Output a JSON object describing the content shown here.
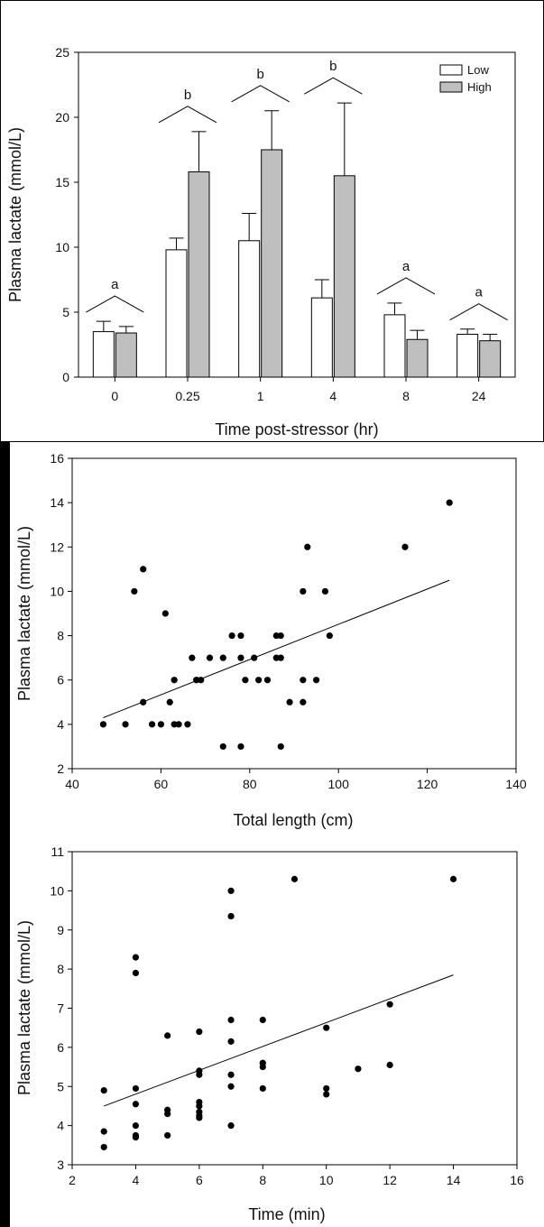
{
  "chart_data": [
    {
      "type": "bar",
      "title": "",
      "xlabel": "Time post-stressor (hr)",
      "ylabel": "Plasma lactate (mmol/L)",
      "ylim": [
        0,
        25
      ],
      "yticks": [
        0,
        5,
        10,
        15,
        20,
        25
      ],
      "categories": [
        "0",
        "0.25",
        "1",
        "4",
        "8",
        "24"
      ],
      "series": [
        {
          "name": "Low",
          "color": "#ffffff",
          "values": [
            3.5,
            9.8,
            10.5,
            6.1,
            4.8,
            3.3
          ],
          "errors": [
            0.8,
            0.9,
            2.1,
            1.4,
            0.9,
            0.4
          ]
        },
        {
          "name": "High",
          "color": "#bfbfbf",
          "values": [
            3.4,
            15.8,
            17.5,
            15.5,
            2.9,
            2.8
          ],
          "errors": [
            0.5,
            3.1,
            3.0,
            5.6,
            0.7,
            0.5
          ]
        }
      ],
      "significance": [
        "a",
        "b",
        "b",
        "b",
        "a",
        "a"
      ],
      "legend": "top-right"
    },
    {
      "type": "scatter",
      "xlabel": "Total length (cm)",
      "ylabel": "Plasma lactate (mmol/L)",
      "xlim": [
        40,
        140
      ],
      "ylim": [
        2,
        16
      ],
      "xticks": [
        40,
        60,
        80,
        100,
        120,
        140
      ],
      "yticks": [
        2,
        4,
        6,
        8,
        10,
        12,
        14,
        16
      ],
      "points": [
        [
          47,
          4
        ],
        [
          52,
          4
        ],
        [
          54,
          10
        ],
        [
          56,
          11
        ],
        [
          56,
          5
        ],
        [
          58,
          4
        ],
        [
          60,
          4
        ],
        [
          61,
          9
        ],
        [
          62,
          5
        ],
        [
          63,
          6
        ],
        [
          63,
          4
        ],
        [
          64,
          4
        ],
        [
          66,
          4
        ],
        [
          67,
          7
        ],
        [
          68,
          6
        ],
        [
          68,
          6
        ],
        [
          69,
          6
        ],
        [
          71,
          7
        ],
        [
          74,
          7
        ],
        [
          74,
          3
        ],
        [
          76,
          8
        ],
        [
          78,
          8
        ],
        [
          78,
          7
        ],
        [
          78,
          3
        ],
        [
          79,
          6
        ],
        [
          81,
          7
        ],
        [
          82,
          6
        ],
        [
          84,
          6
        ],
        [
          86,
          8
        ],
        [
          86,
          7
        ],
        [
          87,
          8
        ],
        [
          87,
          7
        ],
        [
          87,
          3
        ],
        [
          89,
          5
        ],
        [
          92,
          10
        ],
        [
          92,
          6
        ],
        [
          92,
          5
        ],
        [
          93,
          12
        ],
        [
          95,
          6
        ],
        [
          97,
          10
        ],
        [
          98,
          8
        ],
        [
          115,
          12
        ],
        [
          125,
          14
        ]
      ],
      "trendline": {
        "x": [
          47,
          125
        ],
        "y": [
          4.3,
          10.5
        ]
      }
    },
    {
      "type": "scatter",
      "xlabel": "Time (min)",
      "ylabel": "Plasma lactate (mmol/L)",
      "xlim": [
        2,
        16
      ],
      "ylim": [
        3,
        11
      ],
      "xticks": [
        2,
        4,
        6,
        8,
        10,
        12,
        14,
        16
      ],
      "yticks": [
        3,
        4,
        5,
        6,
        7,
        8,
        9,
        10,
        11
      ],
      "points": [
        [
          3,
          4.9
        ],
        [
          3,
          3.85
        ],
        [
          3,
          3.45
        ],
        [
          4,
          8.3
        ],
        [
          4,
          7.9
        ],
        [
          4,
          4.95
        ],
        [
          4,
          4.55
        ],
        [
          4,
          4.0
        ],
        [
          4,
          3.75
        ],
        [
          4,
          3.7
        ],
        [
          5,
          6.3
        ],
        [
          5,
          4.4
        ],
        [
          5,
          4.3
        ],
        [
          5,
          3.75
        ],
        [
          6,
          6.4
        ],
        [
          6,
          5.4
        ],
        [
          6,
          5.3
        ],
        [
          6,
          4.6
        ],
        [
          6,
          4.5
        ],
        [
          6,
          4.35
        ],
        [
          6,
          4.25
        ],
        [
          6,
          4.2
        ],
        [
          7,
          10.0
        ],
        [
          7,
          9.35
        ],
        [
          7,
          6.7
        ],
        [
          7,
          6.15
        ],
        [
          7,
          5.3
        ],
        [
          7,
          5.0
        ],
        [
          7,
          4.0
        ],
        [
          8,
          6.7
        ],
        [
          8,
          5.6
        ],
        [
          8,
          5.5
        ],
        [
          8,
          4.95
        ],
        [
          9,
          10.3
        ],
        [
          10,
          6.5
        ],
        [
          10,
          4.95
        ],
        [
          10,
          4.8
        ],
        [
          11,
          5.45
        ],
        [
          12,
          7.1
        ],
        [
          12,
          5.55
        ],
        [
          14,
          10.3
        ]
      ],
      "trendline": {
        "x": [
          3,
          14
        ],
        "y": [
          4.5,
          7.85
        ]
      }
    }
  ]
}
